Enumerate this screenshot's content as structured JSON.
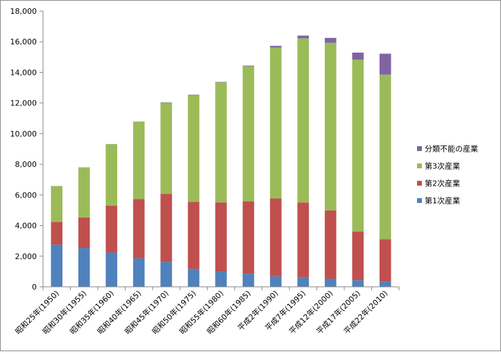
{
  "chart_data": {
    "type": "bar",
    "stacked": true,
    "categories": [
      "昭和25年(1950)",
      "昭和30年(1955)",
      "昭和35年(1960)",
      "昭和40年(1965)",
      "昭和45年(1970)",
      "昭和50年(1975)",
      "昭和55年(1980)",
      "昭和60年(1985)",
      "平成2年(1990)",
      "平成7年(1995)",
      "平成12年(2000)",
      "平成17年(2005)",
      "平成22年(2010)"
    ],
    "series": [
      {
        "name": "第1次産業",
        "color": "#4f81bd",
        "values": [
          2750,
          2530,
          2240,
          1860,
          1620,
          1170,
          990,
          850,
          690,
          600,
          520,
          440,
          350
        ]
      },
      {
        "name": "第2次産業",
        "color": "#c0504d",
        "values": [
          1490,
          2000,
          3050,
          3860,
          4440,
          4380,
          4520,
          4730,
          5080,
          4900,
          4470,
          3170,
          2760
        ]
      },
      {
        "name": "第3次産業",
        "color": "#9bbb59",
        "values": [
          2330,
          3260,
          4020,
          5060,
          5950,
          6960,
          7830,
          8820,
          9850,
          10720,
          10940,
          11220,
          10740
        ]
      },
      {
        "name": "分類不能の産業",
        "color": "#8064a2",
        "values": [
          10,
          10,
          10,
          10,
          30,
          30,
          30,
          40,
          110,
          180,
          320,
          460,
          1370
        ]
      }
    ],
    "ylim": [
      0,
      18000
    ],
    "y_ticks": [
      "0",
      "2,000",
      "4,000",
      "6,000",
      "8,000",
      "10,000",
      "12,000",
      "14,000",
      "16,000",
      "18,000"
    ],
    "legend_position": "right",
    "grid": false
  }
}
